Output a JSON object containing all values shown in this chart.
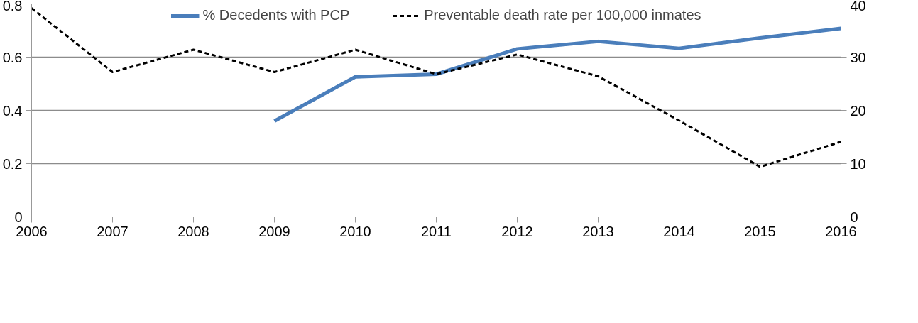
{
  "chart_data": {
    "type": "line",
    "x": [
      2006,
      2007,
      2008,
      2009,
      2010,
      2011,
      2012,
      2013,
      2014,
      2015,
      2016
    ],
    "series": [
      {
        "name": "% Decedents with PCP",
        "color": "#4a7ebb",
        "line_style": "solid",
        "values": [
          null,
          null,
          null,
          0.36,
          0.526,
          0.536,
          0.631,
          0.659,
          0.633,
          0.672,
          0.708
        ]
      },
      {
        "name": "Preventable death rate per 100,000 inmates",
        "color": "#000000",
        "line_style": "dashed",
        "axis": "y2",
        "values": [
          39.2,
          27.2,
          31.4,
          27.2,
          31.4,
          26.8,
          30.5,
          26.4,
          18.1,
          9.4,
          14.1
        ]
      }
    ],
    "xlim": [
      2006,
      2016
    ],
    "xticks": [
      2006,
      2007,
      2008,
      2009,
      2010,
      2011,
      2012,
      2013,
      2014,
      2015,
      2016
    ],
    "ylim": [
      0,
      0.8
    ],
    "yticks": [
      0,
      0.2,
      0.4,
      0.6,
      0.8
    ],
    "y2lim": [
      0,
      40
    ],
    "y2ticks": [
      0,
      10,
      20,
      30,
      40
    ],
    "grid": "y",
    "legend": "top",
    "marker": "none"
  }
}
